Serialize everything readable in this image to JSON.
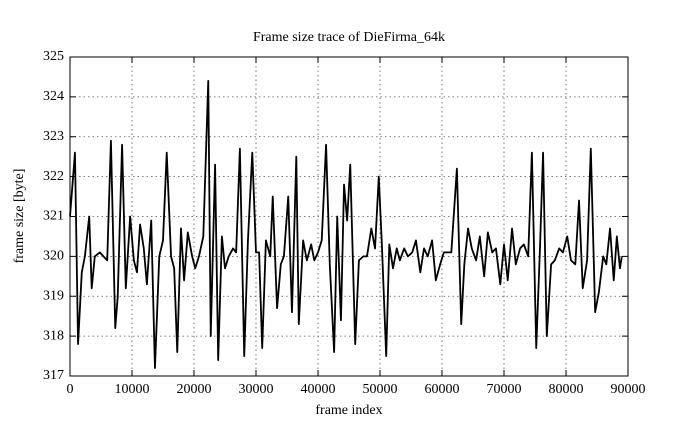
{
  "chart_data": {
    "type": "line",
    "title": "Frame size trace of DieFirma_64k",
    "x_label": "frame index",
    "y_label": "frame size [byte]",
    "x": [
      0,
      800,
      1300,
      1900,
      2400,
      3100,
      3500,
      4000,
      4800,
      6000,
      6600,
      7300,
      7700,
      8400,
      9000,
      9700,
      10300,
      10800,
      11300,
      11900,
      12400,
      13100,
      13700,
      14400,
      15000,
      15600,
      16300,
      16800,
      17300,
      17900,
      18400,
      19000,
      19700,
      20200,
      20800,
      21500,
      22300,
      22700,
      23400,
      23900,
      24500,
      25000,
      25600,
      26300,
      26800,
      27400,
      28100,
      28700,
      29400,
      30000,
      30500,
      31000,
      31600,
      32300,
      32700,
      33400,
      34000,
      34500,
      35200,
      35800,
      36500,
      36900,
      37600,
      38200,
      38900,
      39400,
      40000,
      40600,
      41300,
      41900,
      42600,
      43100,
      43700,
      44200,
      44700,
      45200,
      46000,
      46600,
      47300,
      47900,
      48600,
      49200,
      49800,
      50300,
      51000,
      51500,
      52100,
      52700,
      53200,
      53900,
      54500,
      55200,
      55800,
      56500,
      57100,
      57700,
      58400,
      59000,
      59700,
      60300,
      60800,
      61500,
      62400,
      63100,
      63600,
      64200,
      64800,
      65500,
      66100,
      66800,
      67400,
      68100,
      68700,
      69400,
      70000,
      70600,
      71300,
      71900,
      72600,
      73200,
      73900,
      74500,
      75200,
      75800,
      76300,
      76900,
      77600,
      78200,
      78900,
      79500,
      80200,
      80800,
      81500,
      82100,
      82700,
      83400,
      84000,
      84700,
      85300,
      86000,
      86500,
      87100,
      87700,
      88200,
      88700,
      89000
    ],
    "values": [
      321,
      322.6,
      317.8,
      319.6,
      320,
      321,
      319.2,
      320,
      320.1,
      319.9,
      322.9,
      318.2,
      319,
      322.8,
      319.2,
      321,
      319.9,
      319.6,
      320.8,
      320.2,
      319.3,
      320.9,
      317.2,
      320,
      320.4,
      322.6,
      320,
      319.7,
      317.6,
      320.7,
      319.4,
      320.6,
      320,
      319.7,
      320,
      320.5,
      324.4,
      318,
      322.3,
      317.4,
      320.5,
      319.7,
      320,
      320.2,
      320.1,
      322.7,
      317.5,
      320.4,
      322.6,
      320.1,
      320.1,
      317.7,
      320.4,
      320,
      321.5,
      318.7,
      319.8,
      320,
      321.5,
      318.6,
      322.5,
      318.3,
      320.4,
      319.9,
      320.3,
      319.9,
      320.1,
      320.4,
      322.8,
      319.8,
      317.6,
      321,
      318.4,
      321.8,
      320.9,
      322.3,
      317.8,
      319.9,
      320,
      320,
      320.7,
      320.2,
      322,
      320.3,
      317.5,
      320.3,
      319.7,
      320.2,
      319.9,
      320.2,
      320,
      320.1,
      320.4,
      319.6,
      320.2,
      320,
      320.4,
      319.4,
      319.8,
      320.1,
      320.1,
      320.1,
      322.2,
      318.3,
      319.8,
      320.7,
      320.2,
      319.9,
      320.5,
      319.5,
      320.6,
      320.1,
      320.2,
      319.3,
      320.3,
      319.4,
      320.7,
      319.8,
      320.2,
      320.3,
      320,
      322.6,
      317.7,
      320.2,
      322.6,
      318,
      319.8,
      319.9,
      320.2,
      320.1,
      320.5,
      319.9,
      319.8,
      321.4,
      319.2,
      319.9,
      322.7,
      318.6,
      319.1,
      320,
      319.8,
      320.7,
      319.4,
      320.5,
      319.7,
      320
    ],
    "color": "#000000",
    "xlim": [
      0,
      90000
    ],
    "xticks": [
      0,
      10000,
      20000,
      30000,
      40000,
      50000,
      60000,
      70000,
      80000,
      90000
    ],
    "ylim": [
      317,
      325
    ],
    "yticks": [
      317,
      318,
      319,
      320,
      321,
      322,
      323,
      324,
      325
    ],
    "grid": true
  }
}
